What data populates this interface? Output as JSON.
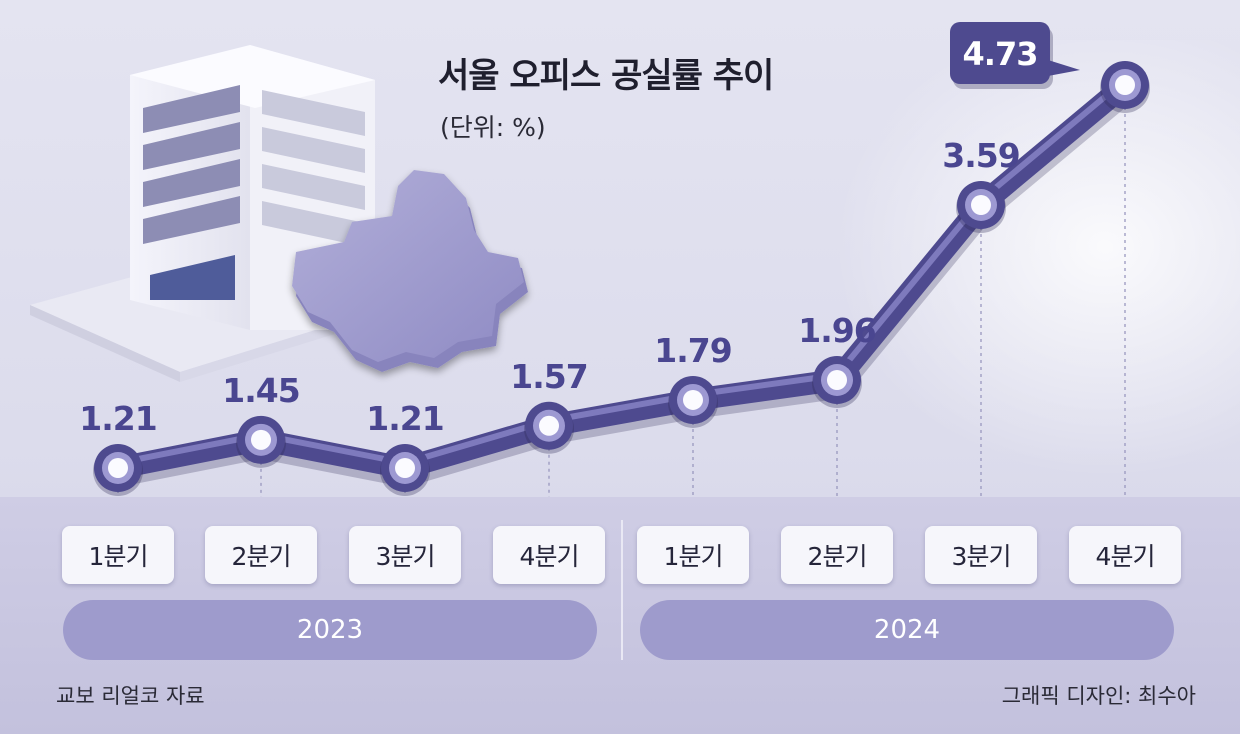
{
  "title": "서울 오피스 공실률 추이",
  "unit": "(단위: %)",
  "source": "교보 리얼코 자료",
  "credit": "그래픽 디자인: 최수아",
  "colors": {
    "line": "#4e4a8f",
    "axis_band": "#cbc9e2",
    "year_pill": "#9e9bcc",
    "quarter_pill": "#f6f6fb",
    "callout": "#4e4a8f"
  },
  "icons": [
    "office-building-icon",
    "seoul-map-icon"
  ],
  "chart_data": {
    "type": "line",
    "title": "서울 오피스 공실률 추이",
    "unit": "(단위: %)",
    "categories": [
      "1분기",
      "2분기",
      "3분기",
      "4분기",
      "1분기",
      "2분기",
      "3분기",
      "4분기"
    ],
    "groups": [
      {
        "label": "2023",
        "quarters": [
          "1분기",
          "2분기",
          "3분기",
          "4분기"
        ]
      },
      {
        "label": "2024",
        "quarters": [
          "1분기",
          "2분기",
          "3분기",
          "4분기"
        ]
      }
    ],
    "series": [
      {
        "values": [
          1.21,
          1.45,
          1.21,
          1.57,
          1.79,
          1.96,
          3.59,
          4.73
        ]
      }
    ],
    "value_labels": [
      "1.21",
      "1.45",
      "1.21",
      "1.57",
      "1.79",
      "1.96",
      "3.59",
      "4.73"
    ],
    "highlight": {
      "index": 7,
      "label": "4.73"
    },
    "grid": false
  }
}
